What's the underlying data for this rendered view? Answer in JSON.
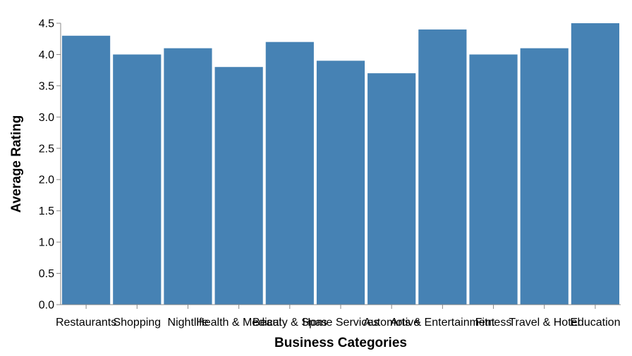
{
  "chart_data": {
    "type": "bar",
    "title": "",
    "xlabel": "Business Categories",
    "ylabel": "Average Rating",
    "categories": [
      "Restaurants",
      "Shopping",
      "Nightlife",
      "Health & Medical",
      "Beauty & Spas",
      "Home Services",
      "Automotive",
      "Arts & Entertainment",
      "Fitness",
      "Travel & Hotel",
      "Education"
    ],
    "values": [
      4.3,
      4.0,
      4.1,
      3.8,
      4.2,
      3.9,
      3.7,
      4.4,
      4.0,
      4.1,
      4.5
    ],
    "ylim": [
      0,
      4.5
    ],
    "yticks": [
      "0.0",
      "0.5",
      "1.0",
      "1.5",
      "2.0",
      "2.5",
      "3.0",
      "3.5",
      "4.0",
      "4.5"
    ],
    "grid": false,
    "bar_color": "#4682b4",
    "axis_color": "#888888"
  }
}
